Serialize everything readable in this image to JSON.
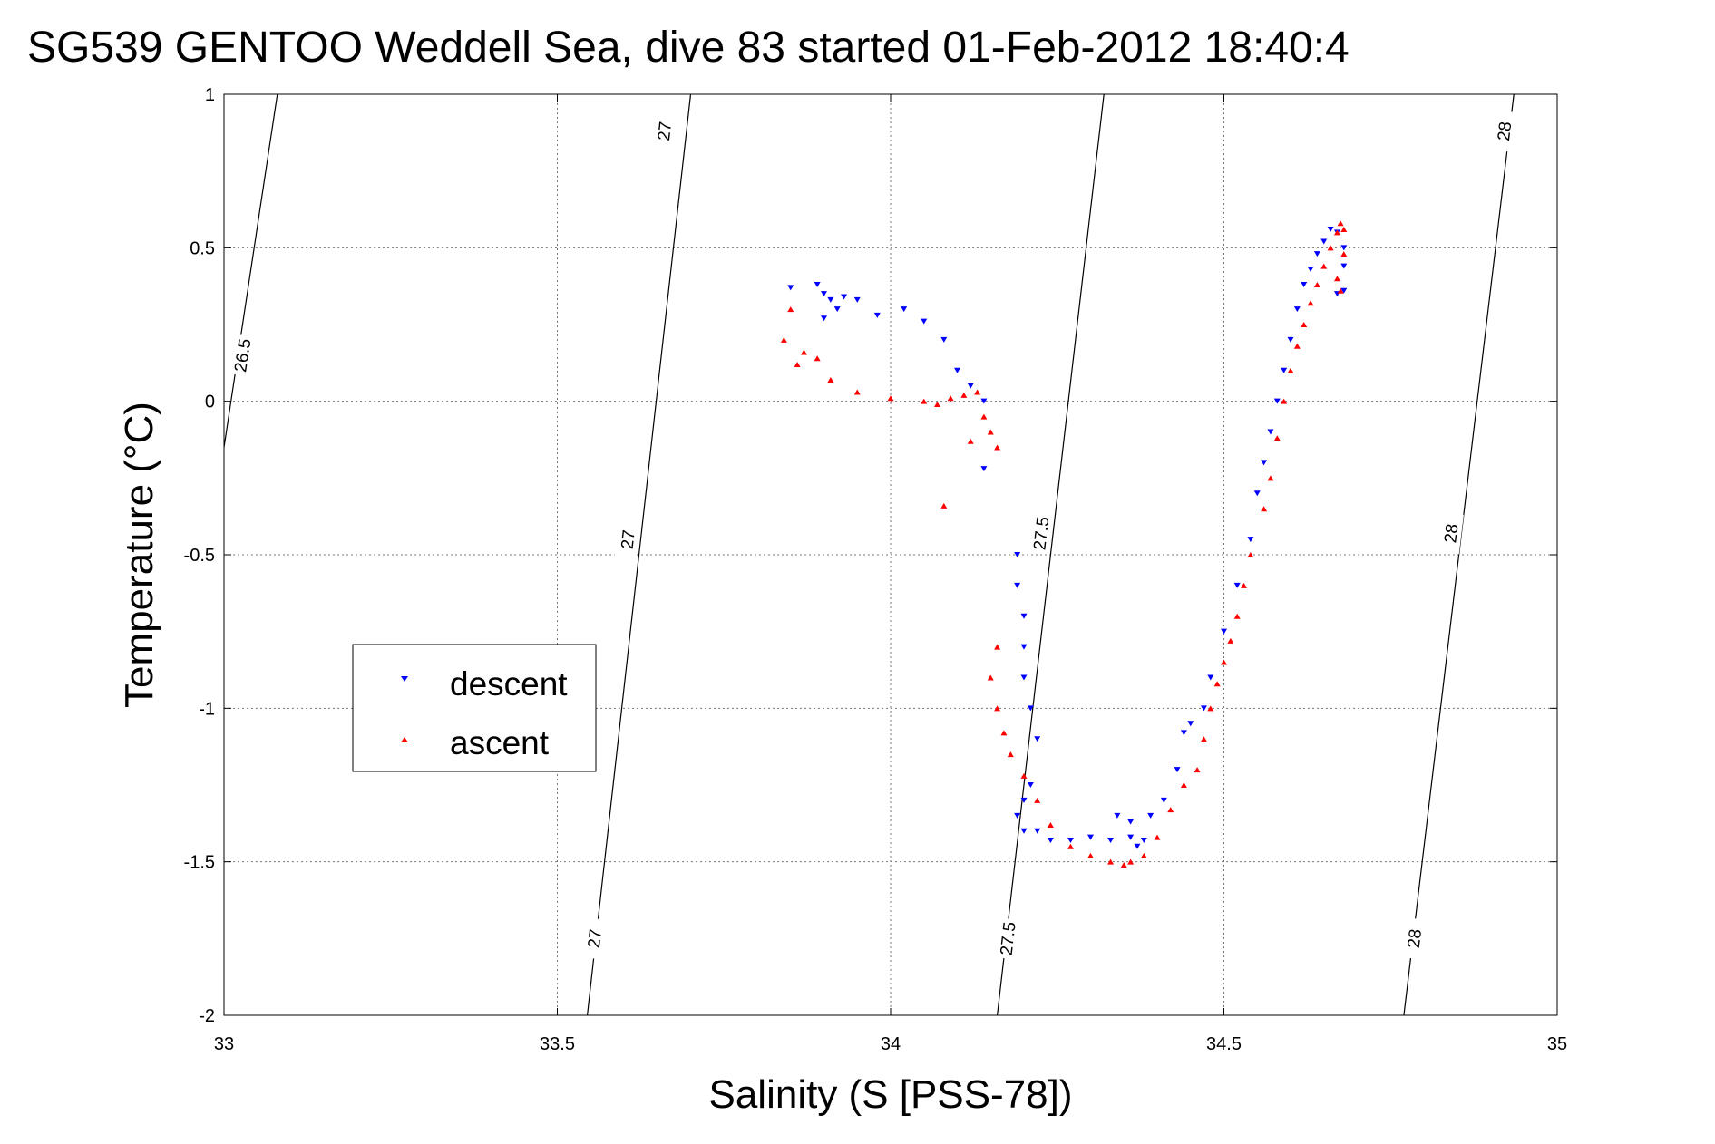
{
  "chart_data": {
    "type": "scatter",
    "title": "SG539 GENTOO Weddell Sea, dive 83 started 01-Feb-2012 18:40:4",
    "xlabel": "Salinity (S [PSS-78])",
    "ylabel": "Temperature (°C)",
    "xlim": [
      33,
      35
    ],
    "ylim": [
      -2,
      1
    ],
    "xticks": [
      33,
      33.5,
      34,
      34.5,
      35
    ],
    "xtick_labels": [
      "33",
      "33.5",
      "34",
      "34.5",
      "35"
    ],
    "yticks": [
      1,
      0.5,
      0,
      -0.5,
      -1,
      -1.5,
      -2
    ],
    "ytick_labels": [
      "1",
      "0.5",
      "0",
      "-0.5",
      "-1",
      "-1.5",
      "-2"
    ],
    "grid": true,
    "legend_position": "center-left",
    "colors": {
      "descent": "#0000ff",
      "ascent": "#ff0000",
      "contour": "#000000"
    },
    "series": [
      {
        "name": "descent",
        "marker": "triangle-down",
        "color": "#0000ff",
        "x": [
          33.85,
          33.89,
          33.9,
          33.91,
          33.93,
          33.95,
          33.92,
          33.9,
          33.98,
          34.02,
          34.05,
          34.08,
          34.1,
          34.12,
          34.14,
          34.14,
          34.19,
          34.19,
          34.2,
          34.2,
          34.2,
          34.21,
          34.22,
          34.21,
          34.2,
          34.19,
          34.2,
          34.22,
          34.24,
          34.27,
          34.3,
          34.33,
          34.34,
          34.36,
          34.38,
          34.37,
          34.36,
          34.39,
          34.41,
          34.43,
          34.44,
          34.45,
          34.47,
          34.48,
          34.5,
          34.52,
          34.54,
          34.55,
          34.56,
          34.57,
          34.58,
          34.59,
          34.6,
          34.61,
          34.62,
          34.63,
          34.64,
          34.65,
          34.66,
          34.67,
          34.68,
          34.68,
          34.67,
          34.68
        ],
        "y": [
          0.37,
          0.38,
          0.35,
          0.33,
          0.34,
          0.33,
          0.3,
          0.27,
          0.28,
          0.3,
          0.26,
          0.2,
          0.1,
          0.05,
          0.0,
          -0.22,
          -0.5,
          -0.6,
          -0.7,
          -0.8,
          -0.9,
          -1.0,
          -1.1,
          -1.25,
          -1.3,
          -1.35,
          -1.4,
          -1.4,
          -1.43,
          -1.43,
          -1.42,
          -1.43,
          -1.35,
          -1.37,
          -1.43,
          -1.45,
          -1.42,
          -1.35,
          -1.3,
          -1.2,
          -1.08,
          -1.05,
          -1.0,
          -0.9,
          -0.75,
          -0.6,
          -0.45,
          -0.3,
          -0.2,
          -0.1,
          0.0,
          0.1,
          0.2,
          0.3,
          0.38,
          0.43,
          0.48,
          0.52,
          0.56,
          0.55,
          0.5,
          0.44,
          0.35,
          0.36
        ]
      },
      {
        "name": "ascent",
        "marker": "triangle-up",
        "color": "#ff0000",
        "x": [
          33.85,
          33.84,
          33.86,
          33.87,
          33.89,
          33.91,
          33.95,
          34.0,
          34.05,
          34.07,
          34.09,
          34.11,
          34.13,
          34.14,
          34.15,
          34.12,
          34.16,
          34.08,
          34.16,
          34.15,
          34.16,
          34.17,
          34.18,
          34.2,
          34.22,
          34.24,
          34.27,
          34.3,
          34.33,
          34.35,
          34.36,
          34.38,
          34.4,
          34.42,
          34.44,
          34.46,
          34.47,
          34.48,
          34.49,
          34.5,
          34.51,
          34.52,
          34.53,
          34.54,
          34.56,
          34.57,
          34.58,
          34.59,
          34.6,
          34.61,
          34.62,
          34.63,
          34.64,
          34.65,
          34.66,
          34.67,
          34.675,
          34.68,
          34.68,
          34.67,
          34.675
        ],
        "y": [
          0.3,
          0.2,
          0.12,
          0.16,
          0.14,
          0.07,
          0.03,
          0.01,
          0.0,
          -0.01,
          0.01,
          0.02,
          0.03,
          -0.05,
          -0.1,
          -0.13,
          -0.15,
          -0.34,
          -0.8,
          -0.9,
          -1.0,
          -1.08,
          -1.15,
          -1.22,
          -1.3,
          -1.38,
          -1.45,
          -1.48,
          -1.5,
          -1.51,
          -1.5,
          -1.48,
          -1.42,
          -1.33,
          -1.25,
          -1.2,
          -1.1,
          -1.0,
          -0.92,
          -0.85,
          -0.78,
          -0.7,
          -0.6,
          -0.5,
          -0.35,
          -0.25,
          -0.12,
          0.0,
          0.1,
          0.18,
          0.25,
          0.32,
          0.38,
          0.44,
          0.5,
          0.55,
          0.58,
          0.56,
          0.48,
          0.4,
          0.36
        ]
      }
    ],
    "contours": [
      {
        "label": "26.5",
        "points": [
          [
            33.0,
            -0.15
          ],
          [
            33.08,
            1.0
          ]
        ],
        "label_positions": [
          [
            33.027,
            0.15
          ]
        ]
      },
      {
        "label": "27",
        "points": [
          [
            33.545,
            -2.0
          ],
          [
            33.7,
            1.0
          ]
        ],
        "label_positions": [
          [
            33.66,
            0.88
          ],
          [
            33.605,
            -0.45
          ],
          [
            33.555,
            -1.75
          ]
        ]
      },
      {
        "label": "27.5",
        "points": [
          [
            34.16,
            -2.0
          ],
          [
            34.32,
            1.0
          ]
        ],
        "label_positions": [
          [
            34.175,
            -1.75
          ],
          [
            34.225,
            -0.43
          ]
        ]
      },
      {
        "label": "28",
        "points": [
          [
            34.77,
            -2.0
          ],
          [
            34.935,
            1.0
          ]
        ],
        "label_positions": [
          [
            34.92,
            0.88
          ],
          [
            34.84,
            -0.43
          ],
          [
            34.785,
            -1.75
          ]
        ]
      }
    ]
  }
}
